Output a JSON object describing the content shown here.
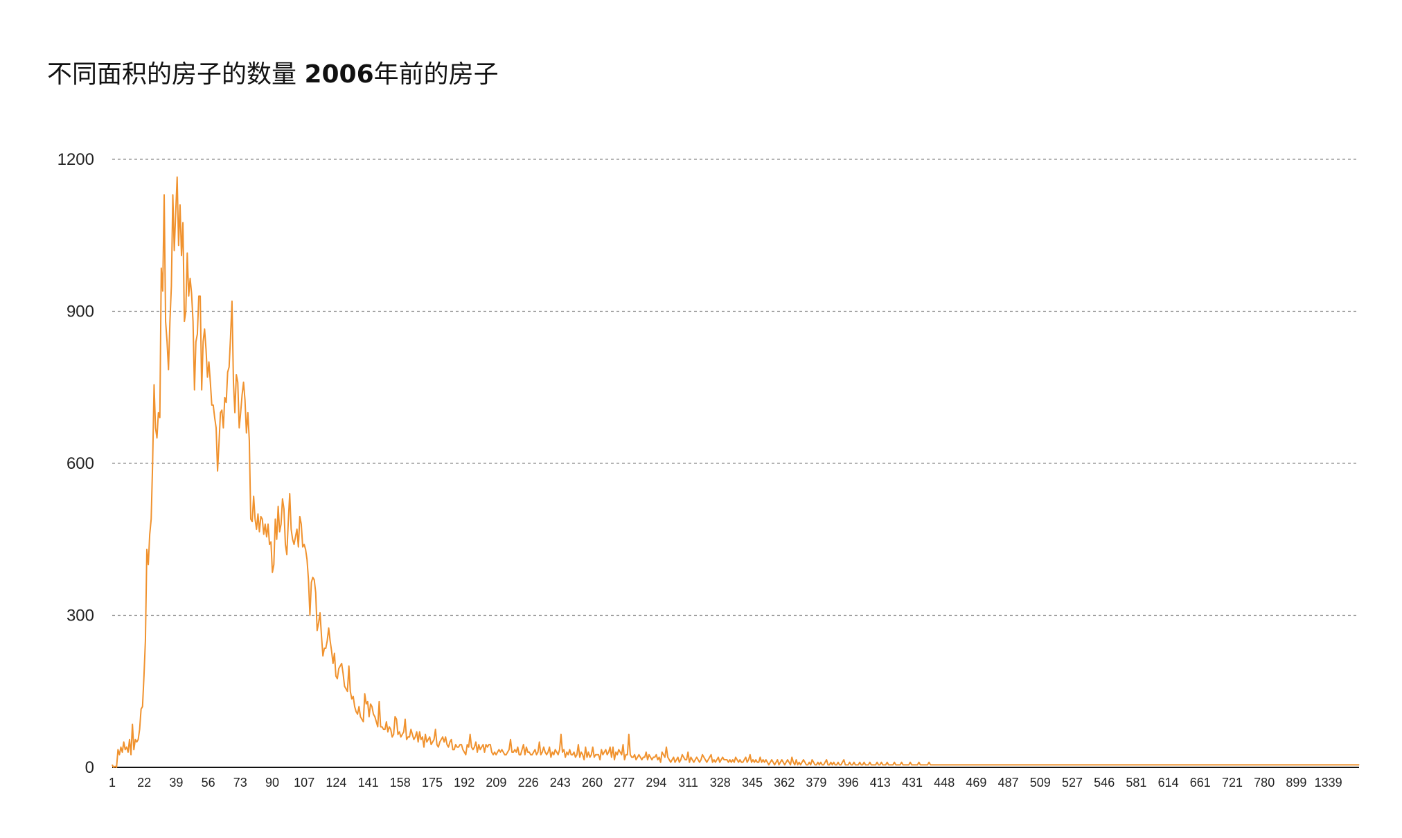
{
  "title": {
    "prefix": "不同面积的房子的数量 ",
    "year": "2006",
    "suffix": "年前的房子"
  },
  "chart_data": {
    "type": "line",
    "title": "不同面积的房子的数量 2006年前的房子",
    "xlabel": "",
    "ylabel": "",
    "ylim": [
      0,
      1200
    ],
    "yticks": [
      0,
      300,
      600,
      900,
      1200
    ],
    "grid": true,
    "line_color": "#F0922E",
    "x_tick_labels": [
      "1",
      "22",
      "39",
      "56",
      "73",
      "90",
      "107",
      "124",
      "141",
      "158",
      "175",
      "192",
      "209",
      "226",
      "243",
      "260",
      "277",
      "294",
      "311",
      "328",
      "345",
      "362",
      "379",
      "396",
      "413",
      "431",
      "448",
      "469",
      "487",
      "509",
      "527",
      "546",
      "581",
      "614",
      "661",
      "721",
      "780",
      "899",
      "1339"
    ],
    "series": [
      {
        "values": [
          5,
          0,
          2,
          0,
          35,
          25,
          40,
          30,
          50,
          35,
          40,
          30,
          55,
          25,
          85,
          35,
          55,
          50,
          55,
          75,
          115,
          120,
          180,
          250,
          430,
          400,
          460,
          490,
          600,
          755,
          670,
          650,
          700,
          690,
          985,
          940,
          1130,
          880,
          840,
          785,
          880,
          950,
          1130,
          1020,
          1095,
          1165,
          1030,
          1110,
          1010,
          1075,
          880,
          900,
          1015,
          930,
          965,
          935,
          880,
          745,
          840,
          855,
          930,
          930,
          745,
          840,
          865,
          825,
          770,
          800,
          760,
          715,
          715,
          690,
          670,
          585,
          640,
          700,
          705,
          670,
          730,
          720,
          780,
          790,
          850,
          920,
          760,
          700,
          775,
          760,
          670,
          700,
          735,
          760,
          725,
          660,
          700,
          645,
          490,
          485,
          535,
          490,
          470,
          500,
          465,
          495,
          490,
          460,
          480,
          455,
          480,
          440,
          445,
          385,
          400,
          490,
          450,
          515,
          465,
          480,
          530,
          510,
          440,
          420,
          485,
          540,
          470,
          450,
          440,
          455,
          470,
          435,
          495,
          480,
          435,
          440,
          430,
          410,
          370,
          300,
          365,
          375,
          370,
          345,
          270,
          285,
          305,
          260,
          220,
          235,
          235,
          250,
          275,
          250,
          230,
          205,
          225,
          180,
          175,
          195,
          200,
          205,
          185,
          160,
          155,
          150,
          200,
          150,
          135,
          140,
          120,
          110,
          105,
          120,
          100,
          95,
          90,
          145,
          125,
          130,
          100,
          125,
          120,
          105,
          100,
          90,
          80,
          130,
          80,
          80,
          75,
          75,
          90,
          70,
          80,
          75,
          60,
          65,
          100,
          95,
          65,
          70,
          60,
          65,
          70,
          95,
          55,
          60,
          60,
          75,
          65,
          55,
          60,
          70,
          50,
          70,
          55,
          60,
          40,
          65,
          50,
          55,
          60,
          45,
          50,
          55,
          75,
          45,
          40,
          50,
          55,
          60,
          50,
          60,
          45,
          40,
          50,
          55,
          35,
          35,
          45,
          40,
          40,
          45,
          45,
          35,
          30,
          25,
          45,
          40,
          65,
          40,
          35,
          40,
          50,
          30,
          45,
          35,
          40,
          45,
          30,
          45,
          40,
          45,
          45,
          30,
          25,
          30,
          25,
          30,
          35,
          30,
          35,
          30,
          25,
          25,
          30,
          35,
          55,
          30,
          30,
          35,
          30,
          40,
          25,
          25,
          35,
          45,
          25,
          40,
          30,
          30,
          25,
          25,
          30,
          35,
          25,
          30,
          50,
          25,
          30,
          40,
          30,
          25,
          30,
          40,
          20,
          30,
          25,
          35,
          30,
          25,
          35,
          65,
          30,
          35,
          20,
          30,
          25,
          35,
          25,
          25,
          30,
          20,
          25,
          45,
          20,
          30,
          25,
          15,
          40,
          20,
          30,
          20,
          25,
          40,
          20,
          25,
          25,
          25,
          15,
          35,
          25,
          30,
          35,
          25,
          30,
          40,
          20,
          40,
          15,
          30,
          25,
          35,
          30,
          25,
          45,
          15,
          25,
          25,
          65,
          25,
          20,
          20,
          25,
          15,
          20,
          25,
          20,
          15,
          20,
          20,
          30,
          15,
          25,
          20,
          15,
          20,
          20,
          25,
          15,
          20,
          10,
          30,
          25,
          20,
          40,
          20,
          15,
          10,
          15,
          20,
          10,
          15,
          20,
          10,
          15,
          25,
          20,
          15,
          15,
          30,
          10,
          20,
          15,
          10,
          15,
          20,
          15,
          10,
          15,
          25,
          20,
          15,
          10,
          15,
          20,
          25,
          10,
          15,
          10,
          15,
          20,
          10,
          15,
          20,
          15,
          15,
          15,
          10,
          15,
          10,
          15,
          10,
          20,
          15,
          10,
          15,
          10,
          10,
          15,
          20,
          10,
          15,
          25,
          10,
          15,
          10,
          15,
          10,
          10,
          20,
          10,
          15,
          10,
          15,
          10,
          5,
          10,
          15,
          10,
          5,
          10,
          15,
          5,
          10,
          15,
          10,
          5,
          10,
          15,
          10,
          5,
          20,
          10,
          5,
          15,
          5,
          10,
          5,
          10,
          15,
          10,
          5,
          5,
          10,
          5,
          15,
          10,
          5,
          5,
          10,
          5,
          10,
          5,
          5,
          10,
          15,
          5,
          5,
          10,
          5,
          10,
          5,
          5,
          10,
          5,
          5,
          10,
          15,
          5,
          5,
          5,
          10,
          5,
          5,
          10,
          5,
          5,
          5,
          10,
          5,
          5,
          10,
          5,
          5,
          5,
          10,
          5,
          5,
          5,
          5,
          10,
          5,
          5,
          10,
          5,
          5,
          5,
          10,
          5,
          5,
          5,
          5,
          10,
          5,
          5,
          5,
          5,
          10,
          5,
          5,
          5,
          5,
          5,
          10,
          5,
          5,
          5,
          5,
          5,
          10,
          5,
          5,
          5,
          5,
          5,
          5,
          10,
          5,
          5,
          5,
          5,
          5,
          5,
          5,
          5,
          5,
          5,
          5,
          5,
          5,
          5,
          5,
          5,
          5,
          5,
          5,
          5,
          5,
          5,
          5,
          5,
          5,
          5,
          5,
          5,
          5,
          5,
          5,
          5,
          5,
          5,
          5,
          5,
          5,
          5,
          5,
          5,
          5,
          5,
          5,
          5,
          5,
          5,
          5,
          5,
          5,
          5,
          5,
          5,
          5,
          5,
          5,
          5,
          5,
          5,
          5,
          5,
          5,
          5,
          5,
          5,
          5,
          5,
          5,
          5,
          5,
          5,
          5,
          5,
          5,
          5,
          5,
          5,
          5,
          5,
          5,
          5,
          5,
          5,
          5,
          5,
          5,
          5,
          5,
          5,
          5,
          5,
          5,
          5,
          5,
          5,
          5,
          5,
          5,
          5,
          5,
          5,
          5,
          5,
          5,
          5,
          5,
          5,
          5,
          5,
          5,
          5,
          5,
          5,
          5,
          5,
          5,
          5,
          5,
          5,
          5,
          5,
          5,
          5,
          5,
          5,
          5,
          5,
          5,
          5,
          5,
          5,
          5,
          5,
          5,
          5,
          5,
          5,
          5,
          5,
          5,
          5,
          5,
          5,
          5,
          5,
          5,
          5,
          5,
          5,
          5,
          5,
          5,
          5,
          5,
          5,
          5,
          5,
          5,
          5,
          5,
          5,
          5,
          5,
          5,
          5,
          5,
          5,
          5,
          5,
          5,
          5,
          5,
          5,
          5,
          5,
          5,
          5,
          5,
          5,
          5,
          5,
          5,
          5,
          5,
          5,
          5,
          5,
          5,
          5,
          5,
          5,
          5,
          5,
          5,
          5,
          5,
          5,
          5,
          5,
          5,
          5,
          5,
          5,
          5,
          5,
          5,
          5,
          5,
          5,
          5,
          5,
          5,
          5,
          5,
          5,
          5,
          5,
          5,
          5,
          5,
          5,
          5,
          5,
          5,
          5,
          5,
          5,
          5,
          5,
          5,
          5,
          5,
          5,
          5,
          5,
          5,
          5,
          5,
          5,
          5,
          5,
          5,
          5,
          5,
          5,
          5,
          5,
          5,
          5,
          5,
          5,
          5,
          5,
          5,
          5,
          5,
          5,
          5,
          5,
          5,
          5,
          5,
          5,
          5,
          5,
          5,
          5,
          5,
          5,
          5,
          5,
          5,
          5,
          5,
          5,
          5,
          5,
          5,
          5,
          5,
          5,
          5,
          5,
          5,
          5,
          5,
          5,
          5,
          5,
          5,
          5,
          5,
          5,
          5,
          5,
          5,
          5,
          5,
          5
        ]
      }
    ]
  }
}
